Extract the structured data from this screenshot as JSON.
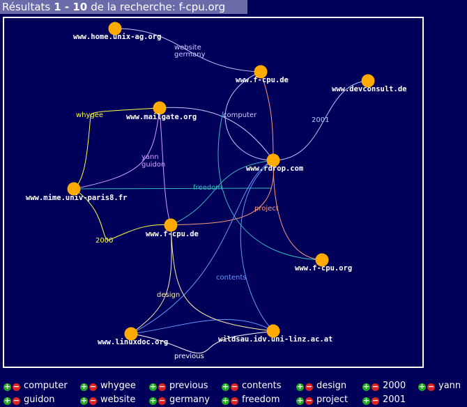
{
  "header": {
    "prefix": "Résultats",
    "range": "1 - 10",
    "suffix": "de la recherche: f-cpu.org"
  },
  "nodes": [
    {
      "label": "www.home.unix-ag.org"
    },
    {
      "label": "www.f-cpu.de"
    },
    {
      "label": "www.devconsult.de"
    },
    {
      "label": "www.mailgate.org"
    },
    {
      "label": "www.rdrop.com"
    },
    {
      "label": "www.mime.univ-paris8.fr"
    },
    {
      "label": "www.f-cpu.de"
    },
    {
      "label": "www.f-cpu.org"
    },
    {
      "label": "www.linuxdoc.org"
    },
    {
      "label": "wildsau.idv.uni-linz.ac.at"
    }
  ],
  "edge_labels": [
    "website",
    "germany",
    "computer",
    "2001",
    "whygee",
    "yann",
    "guidon",
    "freedom",
    "project",
    "2000",
    "contents",
    "design",
    "previous"
  ],
  "legend": [
    "computer",
    "whygee",
    "previous",
    "contents",
    "design",
    "2000",
    "yann",
    "guidon",
    "website",
    "germany",
    "freedom",
    "project",
    "2001"
  ]
}
